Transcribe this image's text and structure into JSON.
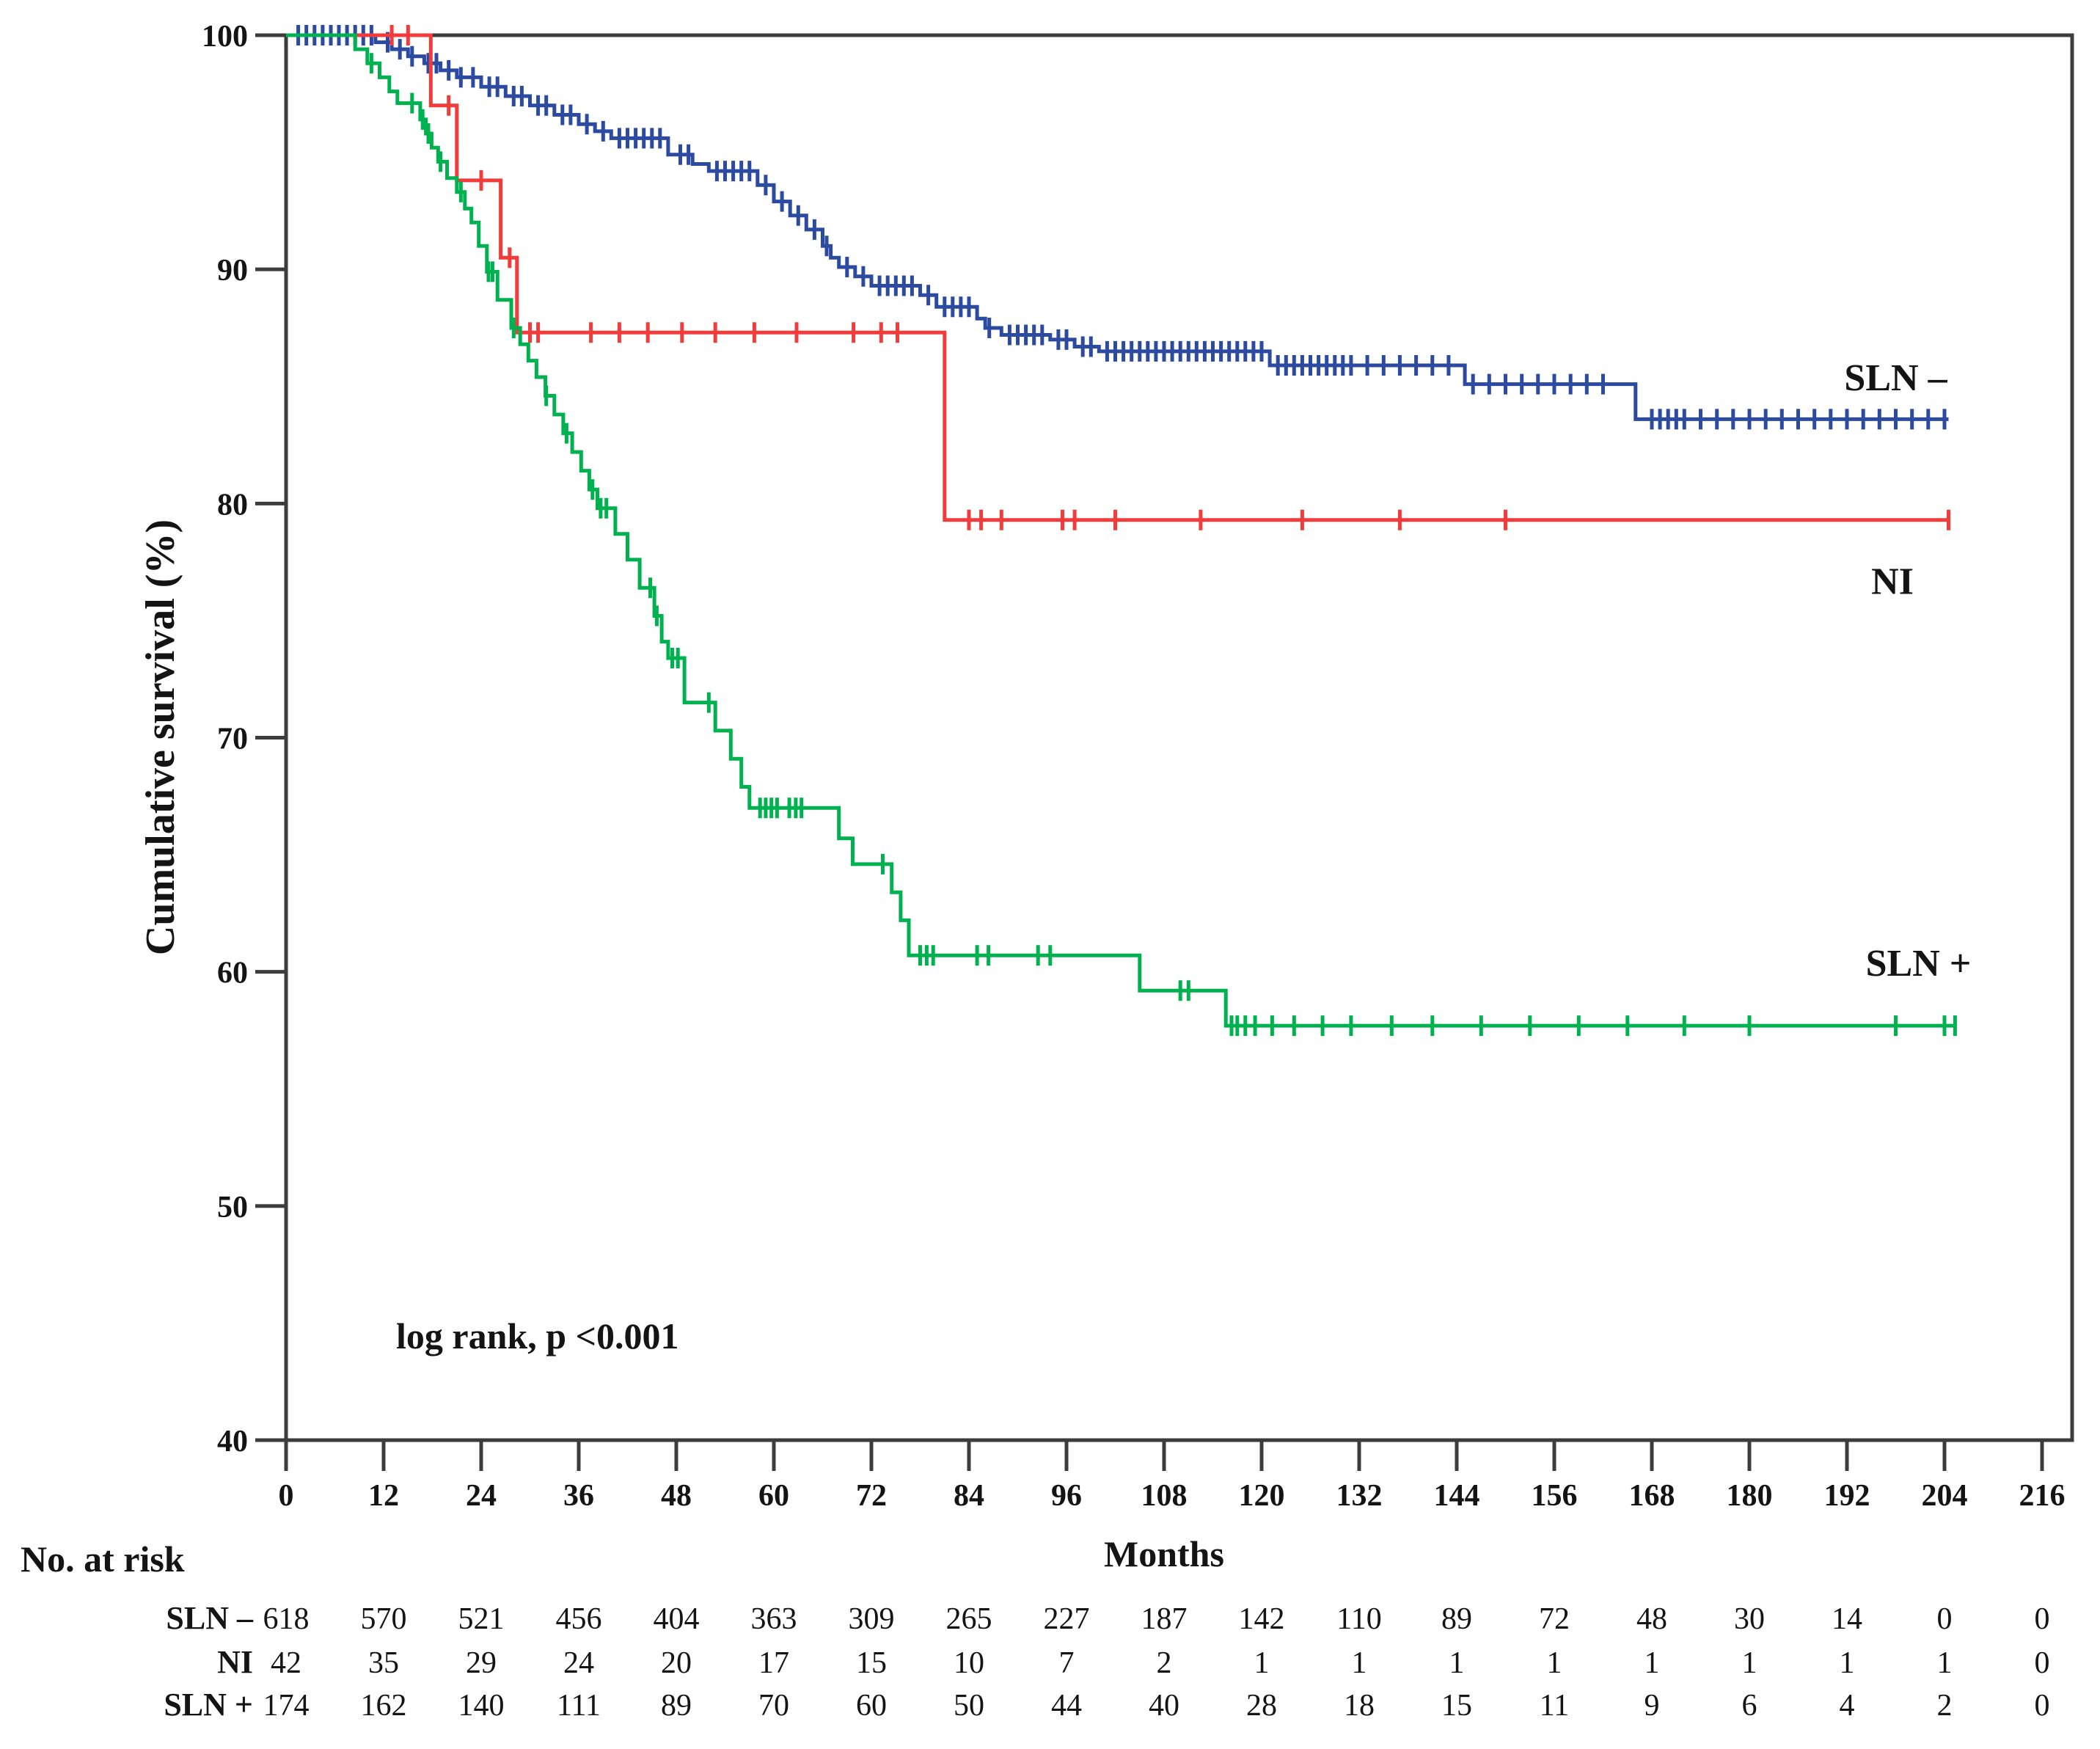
{
  "figure": {
    "ylabel": "Cumulative survival (%)",
    "xlabel": "Months",
    "annotation": "log rank, p <0.001",
    "risk_table_title": "No. at risk",
    "colors": {
      "sln_neg": "#2c4ba0",
      "ni": "#f23b3b",
      "sln_pos": "#00b150",
      "axis": "#3c3c3c",
      "text": "#141414"
    }
  },
  "chart_data": {
    "type": "line",
    "subtype": "kaplan-meier-step",
    "title": "",
    "xlabel": "Months",
    "ylabel": "Cumulative survival (%)",
    "xlim": [
      0,
      216
    ],
    "ylim": [
      40,
      100
    ],
    "x_ticks": [
      0,
      12,
      24,
      36,
      48,
      60,
      72,
      84,
      96,
      108,
      120,
      132,
      144,
      156,
      168,
      180,
      192,
      204,
      216
    ],
    "y_ticks": [
      40,
      50,
      60,
      70,
      80,
      90,
      100
    ],
    "grid": false,
    "legend_position": "right-inline",
    "annotation": "log rank, p <0.001",
    "series": [
      {
        "name": "SLN –",
        "color": "#2c4ba0",
        "start_value": 100,
        "end_month": 204.5,
        "label_at": [
          198,
          85.4
        ],
        "steps": [
          [
            11,
            99.7
          ],
          [
            13,
            99.4
          ],
          [
            15,
            99.1
          ],
          [
            17,
            98.8
          ],
          [
            19,
            98.5
          ],
          [
            21,
            98.2
          ],
          [
            24,
            97.8
          ],
          [
            27,
            97.4
          ],
          [
            30,
            97.0
          ],
          [
            33,
            96.6
          ],
          [
            36,
            96.2
          ],
          [
            38,
            95.9
          ],
          [
            40,
            95.6
          ],
          [
            47,
            94.9
          ],
          [
            50,
            94.5
          ],
          [
            52,
            94.2
          ],
          [
            58,
            93.6
          ],
          [
            60,
            92.9
          ],
          [
            62,
            92.3
          ],
          [
            64,
            91.7
          ],
          [
            66,
            91.0
          ],
          [
            67,
            90.5
          ],
          [
            68,
            90.1
          ],
          [
            70,
            89.7
          ],
          [
            72,
            89.3
          ],
          [
            78,
            88.9
          ],
          [
            80,
            88.4
          ],
          [
            85,
            87.9
          ],
          [
            86,
            87.5
          ],
          [
            88,
            87.2
          ],
          [
            94,
            87.0
          ],
          [
            97,
            86.7
          ],
          [
            100,
            86.5
          ],
          [
            121,
            85.9
          ],
          [
            145,
            85.1
          ],
          [
            166,
            83.6
          ]
        ],
        "censors": [
          1.5,
          2.5,
          3.5,
          4.5,
          5.5,
          6.5,
          7.5,
          8.5,
          9.5,
          10.5,
          12.5,
          14,
          15.5,
          17.5,
          18.5,
          20,
          21.5,
          23,
          25,
          26,
          28,
          29,
          31,
          32,
          34,
          35,
          37,
          39,
          41,
          42,
          43,
          44,
          45,
          46,
          48.5,
          49.5,
          53,
          54,
          55,
          56,
          57,
          59,
          61,
          63,
          65,
          66.5,
          69,
          71,
          73,
          74,
          75,
          76,
          77,
          79,
          81,
          82,
          83,
          84,
          86.5,
          89,
          90,
          91,
          92,
          93,
          95,
          96,
          98,
          99,
          101,
          102,
          103,
          104,
          105,
          106,
          107,
          108,
          109,
          110,
          111,
          112,
          113,
          114,
          115,
          116,
          117,
          118,
          119,
          120,
          122,
          123,
          124,
          125,
          126,
          127,
          128,
          129,
          130,
          131,
          133,
          135,
          137,
          139,
          141,
          143,
          146,
          148,
          150,
          152,
          154,
          156,
          158,
          160,
          162,
          168,
          169,
          170,
          171,
          172,
          174,
          176,
          178,
          180,
          182,
          184,
          186,
          188,
          190,
          192,
          194,
          196,
          198,
          200,
          202,
          204
        ]
      },
      {
        "name": "NI",
        "color": "#f23b3b",
        "start_value": 100,
        "end_month": 204.6,
        "label_at": [
          197.6,
          76.7
        ],
        "steps": [
          [
            17.8,
            97.0
          ],
          [
            21,
            93.8
          ],
          [
            26.4,
            90.5
          ],
          [
            28.4,
            87.3
          ],
          [
            81,
            79.3
          ]
        ],
        "censors": [
          13,
          15,
          20,
          24,
          27.5,
          30,
          31,
          37.5,
          41,
          44.5,
          48.7,
          52.8,
          57.6,
          62.8,
          69.8,
          73.2,
          75.2,
          84,
          85.5,
          88,
          95.5,
          97,
          102,
          112.5,
          125,
          137,
          150,
          204.5
        ]
      },
      {
        "name": "SLN +",
        "color": "#00b150",
        "start_value": 100,
        "end_month": 205.5,
        "label_at": [
          200.8,
          60.4
        ],
        "steps": [
          [
            8.5,
            99.4
          ],
          [
            10,
            98.8
          ],
          [
            11.5,
            98.2
          ],
          [
            12.7,
            97.6
          ],
          [
            13.7,
            97.1
          ],
          [
            16.5,
            96.4
          ],
          [
            17.2,
            95.8
          ],
          [
            17.9,
            95.2
          ],
          [
            18.7,
            94.6
          ],
          [
            19.8,
            93.9
          ],
          [
            21,
            93.3
          ],
          [
            22,
            92.6
          ],
          [
            22.8,
            92.0
          ],
          [
            23.7,
            91.0
          ],
          [
            24.7,
            89.9
          ],
          [
            26,
            88.7
          ],
          [
            27.7,
            87.5
          ],
          [
            28.8,
            86.8
          ],
          [
            29.8,
            86.1
          ],
          [
            30.8,
            85.4
          ],
          [
            31.9,
            84.6
          ],
          [
            33,
            83.8
          ],
          [
            34.1,
            83.0
          ],
          [
            35.2,
            82.2
          ],
          [
            36.3,
            81.4
          ],
          [
            37.3,
            80.6
          ],
          [
            38.3,
            79.8
          ],
          [
            40.5,
            78.7
          ],
          [
            42,
            77.6
          ],
          [
            43.5,
            76.4
          ],
          [
            45.3,
            75.2
          ],
          [
            46.2,
            74.1
          ],
          [
            47,
            73.4
          ],
          [
            49,
            71.5
          ],
          [
            52.8,
            70.3
          ],
          [
            54.7,
            69.1
          ],
          [
            56,
            67.9
          ],
          [
            57,
            67.0
          ],
          [
            68,
            65.7
          ],
          [
            69.7,
            64.6
          ],
          [
            74.5,
            63.4
          ],
          [
            75.6,
            62.2
          ],
          [
            76.6,
            60.7
          ],
          [
            105,
            59.2
          ],
          [
            115.6,
            57.7
          ]
        ],
        "censors": [
          10.5,
          15.5,
          16.8,
          17.5,
          19,
          21.5,
          24.9,
          25.4,
          28,
          32,
          34.5,
          37.7,
          38.7,
          39.4,
          44.8,
          45.6,
          47.5,
          48.2,
          52,
          58.3,
          59,
          59.7,
          60.4,
          61.9,
          62.7,
          63.4,
          73.4,
          78,
          78.8,
          79.6,
          85,
          86.4,
          92.5,
          94,
          110,
          111,
          116.3,
          117,
          118,
          119.2,
          121.3,
          124,
          127.5,
          131,
          136,
          141,
          147,
          153,
          159,
          165,
          172,
          180,
          198,
          204,
          205.3
        ]
      }
    ],
    "risk_table": {
      "title": "No. at risk",
      "months": [
        0,
        12,
        24,
        36,
        48,
        60,
        72,
        84,
        96,
        108,
        120,
        132,
        144,
        156,
        168,
        180,
        192,
        204,
        216
      ],
      "rows": [
        {
          "label": "SLN –",
          "values": [
            618,
            570,
            521,
            456,
            404,
            363,
            309,
            265,
            227,
            187,
            142,
            110,
            89,
            72,
            48,
            30,
            14,
            0,
            0
          ]
        },
        {
          "label": "NI",
          "values": [
            42,
            35,
            29,
            24,
            20,
            17,
            15,
            10,
            7,
            2,
            1,
            1,
            1,
            1,
            1,
            1,
            1,
            1,
            0
          ]
        },
        {
          "label": "SLN +",
          "values": [
            174,
            162,
            140,
            111,
            89,
            70,
            60,
            50,
            44,
            40,
            28,
            18,
            15,
            11,
            9,
            6,
            4,
            2,
            0
          ]
        }
      ]
    }
  }
}
